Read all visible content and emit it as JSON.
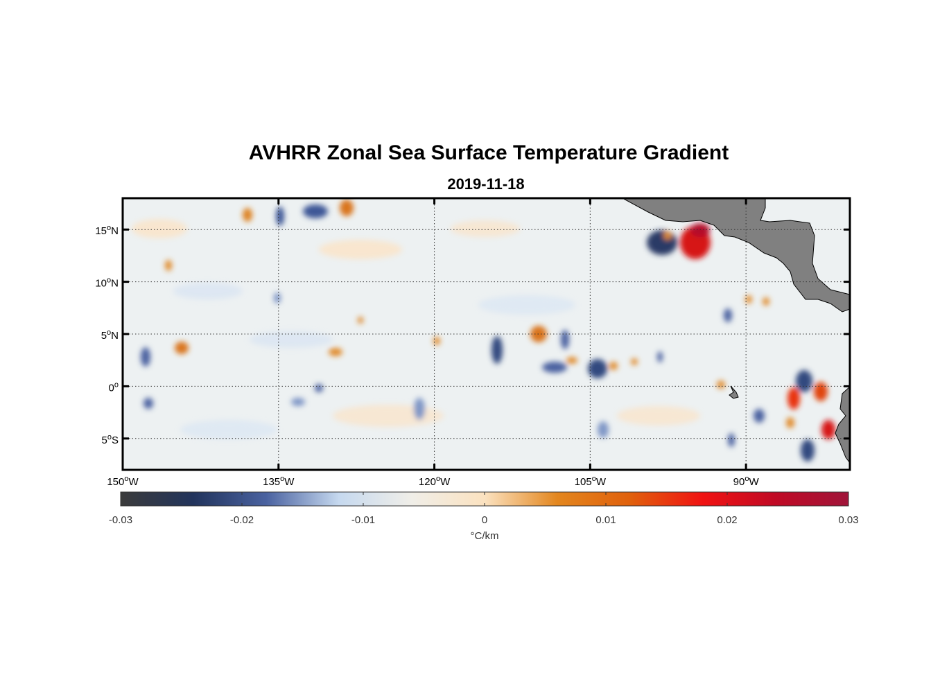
{
  "title": "AVHRR Zonal Sea Surface Temperature Gradient",
  "subtitle": "2019-11-18",
  "map": {
    "lon_range": [
      -150,
      -80
    ],
    "lat_range": [
      -8,
      18
    ],
    "lon_ticks": [
      {
        "value": -150,
        "label": "150",
        "sup": "o",
        "suffix": "W"
      },
      {
        "value": -135,
        "label": "135",
        "sup": "o",
        "suffix": "W"
      },
      {
        "value": -120,
        "label": "120",
        "sup": "o",
        "suffix": "W"
      },
      {
        "value": -105,
        "label": "105",
        "sup": "o",
        "suffix": "W"
      },
      {
        "value": -90,
        "label": "90",
        "sup": "o",
        "suffix": "W"
      }
    ],
    "lat_ticks": [
      {
        "value": 15,
        "label": "15",
        "sup": "o",
        "suffix": "N"
      },
      {
        "value": 10,
        "label": "10",
        "sup": "o",
        "suffix": "N"
      },
      {
        "value": 5,
        "label": "5",
        "sup": "o",
        "suffix": "N"
      },
      {
        "value": 0,
        "label": "0",
        "sup": "o",
        "suffix": ""
      },
      {
        "value": -5,
        "label": "5",
        "sup": "o",
        "suffix": "S"
      }
    ],
    "grid": "dotted",
    "land_color": "#808080"
  },
  "colorbar": {
    "range": [
      -0.03,
      0.03
    ],
    "ticks": [
      "-0.03",
      "-0.02",
      "-0.01",
      "0",
      "0.01",
      "0.02",
      "0.03"
    ],
    "units": "°C/km",
    "colors": [
      "#3b3b3b",
      "#22345c",
      "#4a62a0",
      "#c6d9ef",
      "#f0eee8",
      "#fbe2c0",
      "#e3861e",
      "#e0600c",
      "#f01212",
      "#c00a25",
      "#a0153a"
    ]
  }
}
